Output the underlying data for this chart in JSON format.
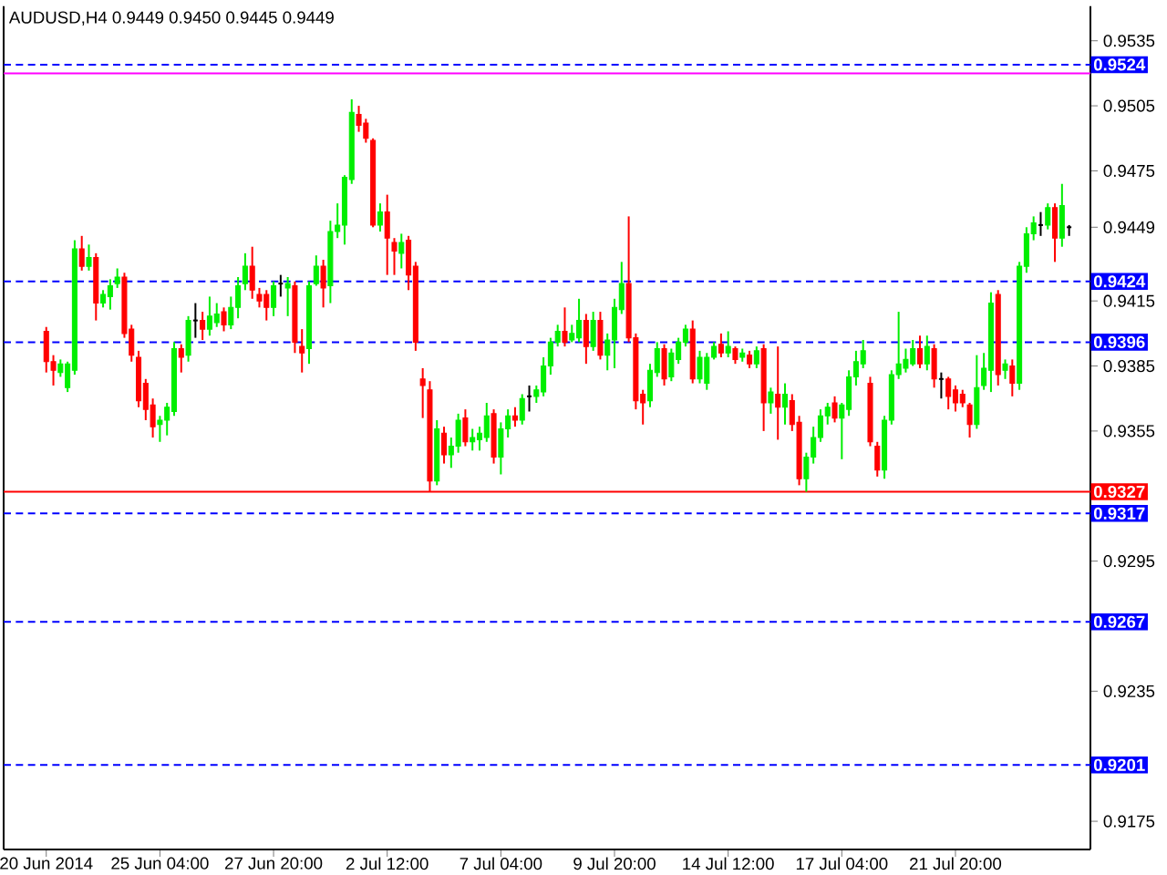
{
  "chart_data": {
    "type": "candlestick",
    "title": "AUDUSD,H4  0.9449 0.9450 0.9445 0.9449",
    "categories": [
      "20 Jun 2014",
      null,
      null,
      null,
      null,
      null,
      null,
      null,
      null,
      null,
      null,
      null,
      null,
      null,
      null,
      null,
      "25 Jun 04:00",
      null,
      null,
      null,
      null,
      null,
      null,
      null,
      null,
      null,
      null,
      null,
      null,
      null,
      null,
      null,
      "27 Jun 20:00",
      null,
      null,
      null,
      null,
      null,
      null,
      null,
      null,
      null,
      null,
      null,
      null,
      null,
      null,
      null,
      "2 Jul 12:00",
      null,
      null,
      null,
      null,
      null,
      null,
      null,
      null,
      null,
      null,
      null,
      null,
      null,
      null,
      null,
      "7 Jul 04:00",
      null,
      null,
      null,
      null,
      null,
      null,
      null,
      null,
      null,
      null,
      null,
      null,
      null,
      null,
      null,
      "9 Jul 20:00",
      null,
      null,
      null,
      null,
      null,
      null,
      null,
      null,
      null,
      null,
      null,
      null,
      null,
      null,
      null,
      "14 Jul 12:00",
      null,
      null,
      null,
      null,
      null,
      null,
      null,
      null,
      null,
      null,
      null,
      null,
      null,
      null,
      null,
      "17 Jul 04:00",
      null,
      null,
      null,
      null,
      null,
      null,
      null,
      null,
      null,
      null,
      null,
      null,
      null,
      null,
      null,
      "21 Jul 20:00",
      null,
      null,
      null,
      null,
      null,
      null,
      null,
      null,
      null,
      null,
      null,
      null,
      null,
      null,
      null,
      null
    ],
    "colors": [
      "#ff0000",
      "#ff0000",
      "#00ee00",
      "#00ee00",
      "#00ee00",
      "#ff0000",
      "#00ee00",
      "#ff0000",
      "#00ee00",
      "#00ee00",
      "#00ee00",
      "#ff0000",
      "#ff0000",
      "#ff0000",
      "#ff0000",
      "#ff0000",
      "#00ee00",
      "#00ee00",
      "#00ee00",
      "#ff0000",
      "#00ee00",
      "#000000",
      "#ff0000",
      "#00ee00",
      "#00ee00",
      "#ff0000",
      "#00ee00",
      "#00ee00",
      "#00ee00",
      "#ff0000",
      "#ff0000",
      "#ff0000",
      "#00ee00",
      "#000000",
      "#00ee00",
      "#ff0000",
      "#ff0000",
      "#00ee00",
      "#00ee00",
      "#ff0000",
      "#00ee00",
      "#00ee00",
      "#00ee00",
      "#00ee00",
      "#ff0000",
      "#ff0000",
      "#ff0000",
      "#00ee00",
      "#ff0000",
      "#ff0000",
      "#00ee00",
      "#ff0000",
      "#ff0000",
      "#ff0000",
      "#ff0000",
      "#00ee00",
      "#ff0000",
      "#00ee00",
      "#00ee00",
      "#ff0000",
      "#00ee00",
      "#00ee00",
      "#00ee00",
      "#ff0000",
      "#00ee00",
      "#00ee00",
      "#ff0000",
      "#00ee00",
      "#000000",
      "#00ee00",
      "#00ee00",
      "#00ee00",
      "#00ee00",
      "#ff0000",
      "#00ee00",
      "#00ee00",
      "#ff0000",
      "#00ee00",
      "#ff0000",
      "#00ee00",
      "#00ee00",
      "#00ee00",
      "#ff0000",
      "#ff0000",
      "#ff0000",
      "#00ee00",
      "#00ee00",
      "#ff0000",
      "#00ee00",
      "#00ee00",
      "#00ee00",
      "#ff0000",
      "#00ee00",
      "#00ee00",
      "#00ee00",
      "#ff0000",
      "#00ee00",
      "#ff0000",
      "#00ee00",
      "#ff0000",
      "#00ee00",
      "#ff0000",
      "#00ee00",
      "#ff0000",
      "#00ee00",
      "#ff0000",
      "#ff0000",
      "#00ee00",
      "#00ee00",
      "#00ee00",
      "#00ee00",
      "#ff0000",
      "#00ee00",
      "#00ee00",
      "#00ee00",
      "#00ee00",
      "#ff0000",
      "#ff0000",
      "#00ee00",
      "#00ee00",
      "#00ee00",
      "#00ee00",
      "#00ee00",
      "#ff0000",
      "#00ee00",
      "#ff0000",
      "#000000",
      "#ff0000",
      "#ff0000",
      "#ff0000",
      "#ff0000",
      "#00ee00",
      "#00ee00",
      "#00ee00",
      "#ff0000",
      "#00ee00",
      "#ff0000",
      "#00ee00",
      "#00ee00",
      "#00ee00",
      "#000000",
      "#00ee00",
      "#ff0000",
      "#00ee00",
      "#000000"
    ],
    "ylim": [
      0.9162,
      0.9551
    ],
    "yticks": [
      0.9535,
      0.9505,
      0.9475,
      {
        "value": 0.9449,
        "label": "0.9449"
      },
      0.9415,
      0.9385,
      0.9355,
      0.9295,
      0.9235,
      0.9175
    ],
    "ref_lines": [
      {
        "axis": "y",
        "value": 0.9524,
        "label": "0.9524",
        "color": "#0000ff",
        "line_style": "dashed"
      },
      {
        "axis": "y",
        "value": 0.952,
        "color": "#ff00ff",
        "line_style": "solid"
      },
      {
        "axis": "y",
        "value": 0.9424,
        "label": "0.9424",
        "color": "#0000ff",
        "line_style": "dashed"
      },
      {
        "axis": "y",
        "value": 0.9396,
        "label": "0.9396",
        "color": "#0000ff",
        "line_style": "dashed"
      },
      {
        "axis": "y",
        "value": 0.9327,
        "label": "0.9327",
        "color": "#ff0000",
        "line_style": "solid"
      },
      {
        "axis": "y",
        "value": 0.9317,
        "label": "0.9317",
        "color": "#0000ff",
        "line_style": "dashed"
      },
      {
        "axis": "y",
        "value": 0.9267,
        "label": "0.9267",
        "color": "#0000ff",
        "line_style": "dashed"
      },
      {
        "axis": "y",
        "value": 0.9201,
        "label": "0.9201",
        "color": "#0000ff",
        "line_style": "dashed"
      }
    ],
    "ohlc": [
      [
        0.9401,
        0.9403,
        0.9382,
        0.9387
      ],
      [
        0.9387,
        0.939,
        0.9376,
        0.9383
      ],
      [
        0.9382,
        0.9388,
        0.938,
        0.9386
      ],
      [
        0.9375,
        0.9387,
        0.9373,
        0.9386
      ],
      [
        0.9383,
        0.9443,
        0.9381,
        0.9439
      ],
      [
        0.9439,
        0.9445,
        0.9429,
        0.9431
      ],
      [
        0.9431,
        0.9441,
        0.9429,
        0.9435
      ],
      [
        0.9435,
        0.9437,
        0.9406,
        0.9414
      ],
      [
        0.9414,
        0.942,
        0.9412,
        0.9418
      ],
      [
        0.9417,
        0.9425,
        0.9411,
        0.9422
      ],
      [
        0.9423,
        0.943,
        0.9421,
        0.9426
      ],
      [
        0.9426,
        0.9428,
        0.9398,
        0.94
      ],
      [
        0.9402,
        0.9404,
        0.9387,
        0.939
      ],
      [
        0.9389,
        0.9392,
        0.9366,
        0.9369
      ],
      [
        0.9377,
        0.9379,
        0.936,
        0.9365
      ],
      [
        0.9367,
        0.937,
        0.9352,
        0.9357
      ],
      [
        0.9358,
        0.9362,
        0.935,
        0.936
      ],
      [
        0.936,
        0.9368,
        0.9353,
        0.9366
      ],
      [
        0.9364,
        0.9396,
        0.9362,
        0.9393
      ],
      [
        0.9393,
        0.9395,
        0.9382,
        0.9389
      ],
      [
        0.939,
        0.9408,
        0.9387,
        0.9406
      ],
      [
        0.9406,
        0.9414,
        0.9398,
        0.9406
      ],
      [
        0.9406,
        0.941,
        0.9397,
        0.9402
      ],
      [
        0.9402,
        0.9417,
        0.9399,
        0.9408
      ],
      [
        0.9405,
        0.9414,
        0.9403,
        0.9409
      ],
      [
        0.941,
        0.9412,
        0.9401,
        0.9404
      ],
      [
        0.9404,
        0.9417,
        0.9402,
        0.9412
      ],
      [
        0.9412,
        0.9426,
        0.9407,
        0.9422
      ],
      [
        0.9423,
        0.9437,
        0.942,
        0.9431
      ],
      [
        0.9431,
        0.944,
        0.9416,
        0.942
      ],
      [
        0.9418,
        0.9421,
        0.9412,
        0.9415
      ],
      [
        0.9418,
        0.942,
        0.9406,
        0.9412
      ],
      [
        0.9412,
        0.9424,
        0.9408,
        0.9422
      ],
      [
        0.9423,
        0.9427,
        0.9417,
        0.9423
      ],
      [
        0.9421,
        0.9426,
        0.9408,
        0.9423
      ],
      [
        0.9422,
        0.9424,
        0.9391,
        0.9396
      ],
      [
        0.9394,
        0.9402,
        0.9382,
        0.9391
      ],
      [
        0.9393,
        0.9424,
        0.9386,
        0.9422
      ],
      [
        0.9423,
        0.9436,
        0.9422,
        0.9431
      ],
      [
        0.9431,
        0.9434,
        0.9412,
        0.9421
      ],
      [
        0.9422,
        0.9452,
        0.9414,
        0.9447
      ],
      [
        0.9447,
        0.946,
        0.9444,
        0.945
      ],
      [
        0.945,
        0.9473,
        0.9441,
        0.9472
      ],
      [
        0.9471,
        0.9508,
        0.9469,
        0.9502
      ],
      [
        0.9501,
        0.9505,
        0.9493,
        0.9496
      ],
      [
        0.9497,
        0.9499,
        0.9488,
        0.949
      ],
      [
        0.9489,
        0.949,
        0.9449,
        0.945
      ],
      [
        0.945,
        0.946,
        0.9447,
        0.9456
      ],
      [
        0.9456,
        0.9464,
        0.9427,
        0.9444
      ],
      [
        0.9442,
        0.9444,
        0.9427,
        0.9438
      ],
      [
        0.9437,
        0.9446,
        0.943,
        0.9442
      ],
      [
        0.9443,
        0.9445,
        0.942,
        0.9427
      ],
      [
        0.9431,
        0.9433,
        0.9392,
        0.9396
      ],
      [
        0.9379,
        0.9384,
        0.9361,
        0.9376
      ],
      [
        0.9374,
        0.9378,
        0.9327,
        0.9332
      ],
      [
        0.9332,
        0.936,
        0.933,
        0.9356
      ],
      [
        0.9354,
        0.9357,
        0.934,
        0.9344
      ],
      [
        0.9344,
        0.9352,
        0.9338,
        0.9348
      ],
      [
        0.9348,
        0.9363,
        0.9345,
        0.936
      ],
      [
        0.9361,
        0.9365,
        0.9348,
        0.935
      ],
      [
        0.935,
        0.9356,
        0.9346,
        0.9352
      ],
      [
        0.9351,
        0.9357,
        0.9346,
        0.9354
      ],
      [
        0.9352,
        0.9368,
        0.935,
        0.9362
      ],
      [
        0.9363,
        0.9365,
        0.934,
        0.9343
      ],
      [
        0.9343,
        0.9359,
        0.9335,
        0.9356
      ],
      [
        0.9356,
        0.9365,
        0.9352,
        0.9362
      ],
      [
        0.9362,
        0.9366,
        0.9357,
        0.936
      ],
      [
        0.936,
        0.9372,
        0.9358,
        0.937
      ],
      [
        0.9371,
        0.9376,
        0.9364,
        0.9371
      ],
      [
        0.9371,
        0.9376,
        0.9368,
        0.9374
      ],
      [
        0.9373,
        0.9389,
        0.9371,
        0.9385
      ],
      [
        0.9385,
        0.9398,
        0.9381,
        0.9396
      ],
      [
        0.9396,
        0.9404,
        0.9394,
        0.9401
      ],
      [
        0.9401,
        0.9412,
        0.9394,
        0.9396
      ],
      [
        0.9397,
        0.9404,
        0.9396,
        0.94
      ],
      [
        0.9398,
        0.9416,
        0.9396,
        0.9406
      ],
      [
        0.9406,
        0.9409,
        0.9386,
        0.9394
      ],
      [
        0.9394,
        0.941,
        0.9392,
        0.9406
      ],
      [
        0.9406,
        0.941,
        0.9388,
        0.939
      ],
      [
        0.939,
        0.94,
        0.9383,
        0.9397
      ],
      [
        0.9397,
        0.9416,
        0.9384,
        0.9412
      ],
      [
        0.9411,
        0.9433,
        0.9409,
        0.9423
      ],
      [
        0.9423,
        0.9454,
        0.9396,
        0.9398
      ],
      [
        0.9398,
        0.94,
        0.9365,
        0.9369
      ],
      [
        0.9372,
        0.9374,
        0.9358,
        0.9368
      ],
      [
        0.9369,
        0.9386,
        0.9366,
        0.9383
      ],
      [
        0.9382,
        0.9396,
        0.938,
        0.9393
      ],
      [
        0.9393,
        0.9395,
        0.9376,
        0.9379
      ],
      [
        0.938,
        0.9393,
        0.9378,
        0.9391
      ],
      [
        0.9388,
        0.9398,
        0.9386,
        0.9396
      ],
      [
        0.9396,
        0.9404,
        0.9394,
        0.9402
      ],
      [
        0.9402,
        0.9406,
        0.9377,
        0.9379
      ],
      [
        0.9379,
        0.9392,
        0.9377,
        0.9389
      ],
      [
        0.9377,
        0.9391,
        0.9374,
        0.9389
      ],
      [
        0.9389,
        0.9396,
        0.9388,
        0.9394
      ],
      [
        0.9395,
        0.94,
        0.9389,
        0.9391
      ],
      [
        0.9391,
        0.9401,
        0.9389,
        0.9394
      ],
      [
        0.9393,
        0.9394,
        0.9386,
        0.9388
      ],
      [
        0.9389,
        0.9393,
        0.9387,
        0.9391
      ],
      [
        0.939,
        0.9392,
        0.9384,
        0.9386
      ],
      [
        0.9386,
        0.9394,
        0.9384,
        0.9392
      ],
      [
        0.9393,
        0.9395,
        0.9355,
        0.9368
      ],
      [
        0.9368,
        0.9375,
        0.9363,
        0.9373
      ],
      [
        0.9372,
        0.9394,
        0.9351,
        0.9366
      ],
      [
        0.9366,
        0.9377,
        0.9358,
        0.9372
      ],
      [
        0.9369,
        0.9372,
        0.9355,
        0.9358
      ],
      [
        0.9359,
        0.9362,
        0.933,
        0.9333
      ],
      [
        0.9333,
        0.9345,
        0.9327,
        0.9343
      ],
      [
        0.9343,
        0.9357,
        0.934,
        0.9352
      ],
      [
        0.9352,
        0.9365,
        0.935,
        0.9362
      ],
      [
        0.9362,
        0.9368,
        0.9358,
        0.9366
      ],
      [
        0.9368,
        0.9371,
        0.9359,
        0.9361
      ],
      [
        0.9361,
        0.9368,
        0.9342,
        0.9367
      ],
      [
        0.9365,
        0.9383,
        0.9362,
        0.938
      ],
      [
        0.938,
        0.9392,
        0.9376,
        0.9387
      ],
      [
        0.9386,
        0.9397,
        0.9384,
        0.9392
      ],
      [
        0.9377,
        0.938,
        0.9348,
        0.935
      ],
      [
        0.9348,
        0.935,
        0.9334,
        0.9337
      ],
      [
        0.9337,
        0.9362,
        0.9333,
        0.936
      ],
      [
        0.936,
        0.9383,
        0.9358,
        0.9381
      ],
      [
        0.9381,
        0.941,
        0.9379,
        0.9386
      ],
      [
        0.9384,
        0.9393,
        0.9382,
        0.9388
      ],
      [
        0.9386,
        0.9397,
        0.9385,
        0.9393
      ],
      [
        0.9393,
        0.9399,
        0.9384,
        0.9386
      ],
      [
        0.9386,
        0.9399,
        0.9383,
        0.9394
      ],
      [
        0.9393,
        0.9395,
        0.9375,
        0.9379
      ],
      [
        0.9379,
        0.9382,
        0.937,
        0.9379
      ],
      [
        0.9379,
        0.938,
        0.9365,
        0.9371
      ],
      [
        0.9374,
        0.9376,
        0.9364,
        0.9368
      ],
      [
        0.9372,
        0.9374,
        0.9366,
        0.9368
      ],
      [
        0.9367,
        0.9368,
        0.9352,
        0.9358
      ],
      [
        0.9358,
        0.939,
        0.9356,
        0.9375
      ],
      [
        0.9376,
        0.9391,
        0.9374,
        0.9384
      ],
      [
        0.9383,
        0.9419,
        0.9373,
        0.9414
      ],
      [
        0.9418,
        0.942,
        0.9376,
        0.9381
      ],
      [
        0.9383,
        0.9388,
        0.9379,
        0.9386
      ],
      [
        0.9385,
        0.9388,
        0.9371,
        0.9377
      ],
      [
        0.9377,
        0.9433,
        0.9374,
        0.9431
      ],
      [
        0.9431,
        0.9449,
        0.9428,
        0.9446
      ],
      [
        0.9446,
        0.9454,
        0.9443,
        0.9451
      ],
      [
        0.945,
        0.9456,
        0.9445,
        0.945
      ],
      [
        0.945,
        0.946,
        0.9448,
        0.9458
      ],
      [
        0.9458,
        0.946,
        0.9433,
        0.9444
      ],
      [
        0.9444,
        0.9469,
        0.944,
        0.9459
      ],
      [
        0.9449,
        0.945,
        0.9445,
        0.9449
      ]
    ]
  }
}
